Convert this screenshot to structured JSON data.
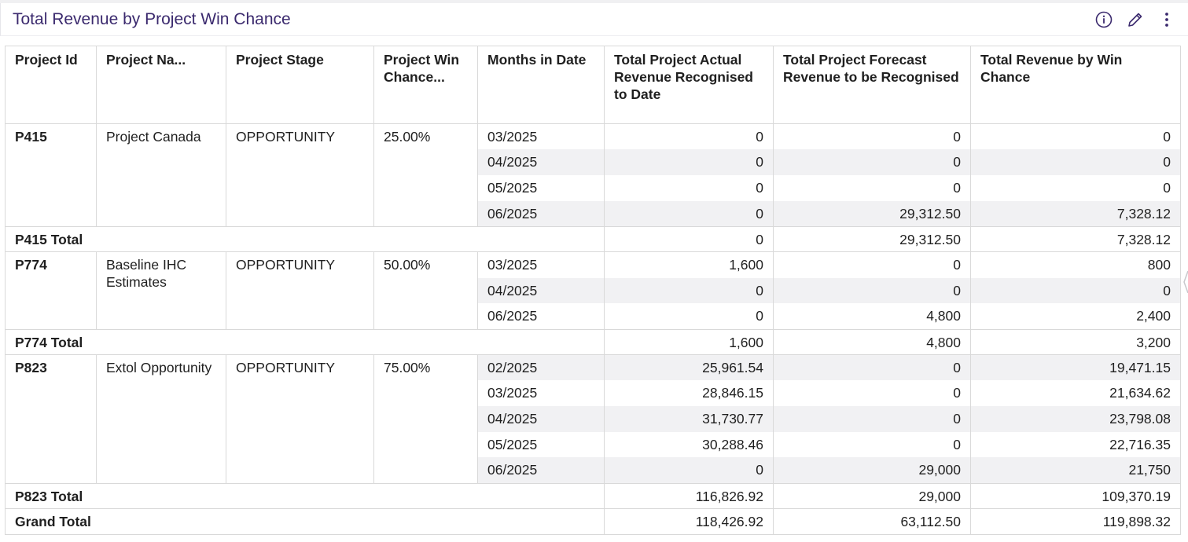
{
  "widget": {
    "title": "Total Revenue by Project Win Chance",
    "icons": [
      "info-icon",
      "edit-pencil-icon",
      "more-vertical-icon"
    ]
  },
  "columns": [
    "Project Id",
    "Project Na...",
    "Project Stage",
    "Project Win Chance...",
    "Months in Date",
    "Total Project Actual Revenue Recognised to Date",
    "Total Project Forecast Revenue to be Recognised",
    "Total Revenue by Win Chance"
  ],
  "groups": [
    {
      "id": "P415",
      "name": "Project Canada",
      "stage": "OPPORTUNITY",
      "win": "25.00%",
      "rows": [
        {
          "month": "03/2025",
          "actual": "0",
          "forecast": "0",
          "win_rev": "0"
        },
        {
          "month": "04/2025",
          "actual": "0",
          "forecast": "0",
          "win_rev": "0"
        },
        {
          "month": "05/2025",
          "actual": "0",
          "forecast": "0",
          "win_rev": "0"
        },
        {
          "month": "06/2025",
          "actual": "0",
          "forecast": "29,312.50",
          "win_rev": "7,328.12"
        }
      ],
      "total": {
        "label": "P415 Total",
        "actual": "0",
        "forecast": "29,312.50",
        "win_rev": "7,328.12"
      }
    },
    {
      "id": "P774",
      "name": "Baseline IHC Estimates",
      "stage": "OPPORTUNITY",
      "win": "50.00%",
      "rows": [
        {
          "month": "03/2025",
          "actual": "1,600",
          "forecast": "0",
          "win_rev": "800"
        },
        {
          "month": "04/2025",
          "actual": "0",
          "forecast": "0",
          "win_rev": "0"
        },
        {
          "month": "06/2025",
          "actual": "0",
          "forecast": "4,800",
          "win_rev": "2,400"
        }
      ],
      "total": {
        "label": "P774 Total",
        "actual": "1,600",
        "forecast": "4,800",
        "win_rev": "3,200"
      }
    },
    {
      "id": "P823",
      "name": "Extol Opportunity",
      "stage": "OPPORTUNITY",
      "win": "75.00%",
      "rows": [
        {
          "month": "02/2025",
          "actual": "25,961.54",
          "forecast": "0",
          "win_rev": "19,471.15"
        },
        {
          "month": "03/2025",
          "actual": "28,846.15",
          "forecast": "0",
          "win_rev": "21,634.62"
        },
        {
          "month": "04/2025",
          "actual": "31,730.77",
          "forecast": "0",
          "win_rev": "23,798.08"
        },
        {
          "month": "05/2025",
          "actual": "30,288.46",
          "forecast": "0",
          "win_rev": "22,716.35"
        },
        {
          "month": "06/2025",
          "actual": "0",
          "forecast": "29,000",
          "win_rev": "21,750"
        }
      ],
      "total": {
        "label": "P823 Total",
        "actual": "116,826.92",
        "forecast": "29,000",
        "win_rev": "109,370.19"
      }
    }
  ],
  "grand_total": {
    "label": "Grand Total",
    "actual": "118,426.92",
    "forecast": "63,112.50",
    "win_rev": "119,898.32"
  }
}
